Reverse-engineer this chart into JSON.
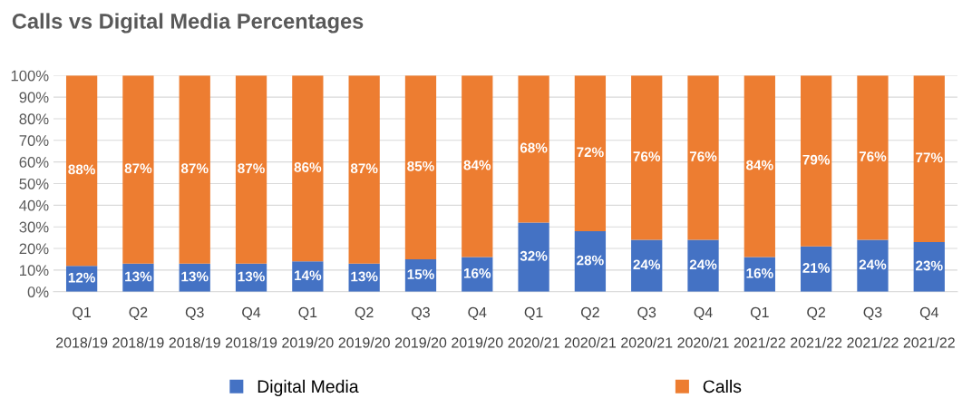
{
  "chart_data": {
    "type": "bar",
    "title": "Calls vs Digital Media Percentages",
    "stacked": true,
    "categories": [
      "Q1\n2018/19",
      "Q2\n2018/19",
      "Q3\n2018/19",
      "Q4\n2018/19",
      "Q1\n2019/20",
      "Q2\n2019/20",
      "Q3\n2019/20",
      "Q4\n2019/20",
      "Q1\n2020/21",
      "Q2\n2020/21",
      "Q3\n2020/21",
      "Q4\n2020/21",
      "Q1\n2021/22",
      "Q2\n2021/22",
      "Q3\n2021/22",
      "Q4\n2021/22"
    ],
    "series": [
      {
        "name": "Digital Media",
        "color": "#4472c4",
        "values": [
          12,
          13,
          13,
          13,
          14,
          13,
          15,
          16,
          32,
          28,
          24,
          24,
          16,
          21,
          24,
          23
        ],
        "value_labels": [
          "12%",
          "13%",
          "13%",
          "13%",
          "14%",
          "13%",
          "15%",
          "16%",
          "32%",
          "28%",
          "24%",
          "24%",
          "16%",
          "21%",
          "24%",
          "23%"
        ]
      },
      {
        "name": "Calls",
        "color": "#ed7d31",
        "values": [
          88,
          87,
          87,
          87,
          86,
          87,
          85,
          84,
          68,
          72,
          76,
          76,
          84,
          79,
          76,
          77
        ],
        "value_labels": [
          "88%",
          "87%",
          "87%",
          "87%",
          "86%",
          "87%",
          "85%",
          "84%",
          "68%",
          "72%",
          "76%",
          "76%",
          "84%",
          "79%",
          "76%",
          "77%"
        ]
      }
    ],
    "ylim": [
      0,
      100
    ],
    "yticks": [
      {
        "value": 0,
        "label": "0%"
      },
      {
        "value": 10,
        "label": "10%"
      },
      {
        "value": 20,
        "label": "20%"
      },
      {
        "value": 30,
        "label": "30%"
      },
      {
        "value": 40,
        "label": "40%"
      },
      {
        "value": 50,
        "label": "50%"
      },
      {
        "value": 60,
        "label": "60%"
      },
      {
        "value": 70,
        "label": "70%"
      },
      {
        "value": 80,
        "label": "80%"
      },
      {
        "value": 90,
        "label": "90%"
      },
      {
        "value": 100,
        "label": "100%"
      }
    ],
    "grid": "y",
    "legend": "bottom"
  }
}
